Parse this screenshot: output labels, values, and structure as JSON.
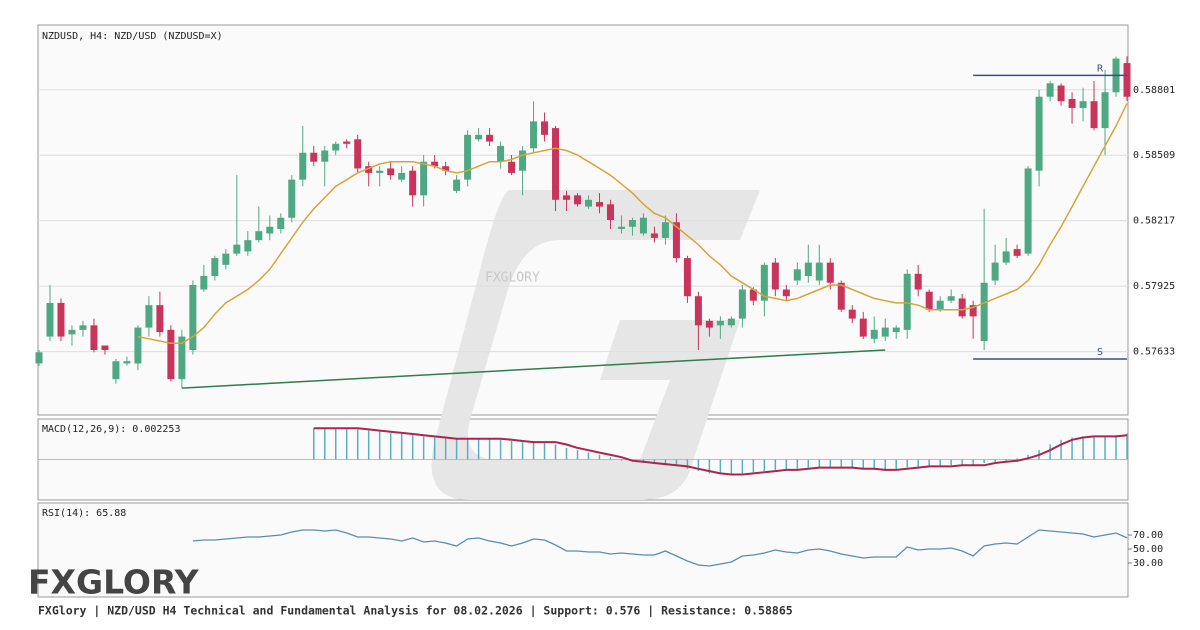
{
  "chart_data": [
    {
      "type": "candlestick",
      "title": "NZDUSD, H4: NZD/USD (NZDUSD=X)",
      "up_color": "#4fa884",
      "down_color": "#c8345c",
      "ylim": [
        0.5735,
        0.5909
      ],
      "yticks": [
        0.57633,
        0.57925,
        0.58217,
        0.58509,
        0.58801
      ],
      "grid": true,
      "open": [
        0.5758,
        0.577,
        0.5785,
        0.5771,
        0.5773,
        0.5775,
        0.5766,
        0.5751,
        0.5758,
        0.5758,
        0.5774,
        0.5784,
        0.5773,
        0.5751,
        0.5764,
        0.5791,
        0.5797,
        0.5802,
        0.5807,
        0.5808,
        0.5813,
        0.5816,
        0.5818,
        0.5823,
        0.584,
        0.5852,
        0.5848,
        0.5853,
        0.5857,
        0.5858,
        0.5846,
        0.5843,
        0.5845,
        0.584,
        0.5844,
        0.5833,
        0.5848,
        0.5846,
        0.5835,
        0.584,
        0.5858,
        0.586,
        0.5848,
        0.5848,
        0.5844,
        0.5854,
        0.5866,
        0.5863,
        0.5833,
        0.5833,
        0.5828,
        0.583,
        0.5829,
        0.5818,
        0.5819,
        0.5816,
        0.5816,
        0.5814,
        0.5821,
        0.5805,
        0.5788,
        0.5777,
        0.5775,
        0.5775,
        0.5778,
        0.5791,
        0.5786,
        0.5803,
        0.5791,
        0.5795,
        0.5797,
        0.5795,
        0.5803,
        0.5794,
        0.5782,
        0.5778,
        0.5769,
        0.577,
        0.5772,
        0.5773,
        0.5798,
        0.579,
        0.5782,
        0.5786,
        0.5787,
        0.5784,
        0.5768,
        0.5795,
        0.5803,
        0.5809,
        0.5807,
        0.5844,
        0.5877,
        0.5882,
        0.5876,
        0.5872,
        0.5875,
        0.5863,
        0.5879,
        0.5892
      ],
      "high": [
        0.5764,
        0.5793,
        0.5787,
        0.5775,
        0.5777,
        0.5778,
        0.5766,
        0.576,
        0.5761,
        0.5775,
        0.5788,
        0.579,
        0.5775,
        0.5773,
        0.5795,
        0.5802,
        0.5806,
        0.5809,
        0.5842,
        0.5817,
        0.5828,
        0.5824,
        0.5825,
        0.5842,
        0.5864,
        0.5855,
        0.5855,
        0.5857,
        0.5858,
        0.586,
        0.5848,
        0.5846,
        0.5848,
        0.5846,
        0.5846,
        0.5851,
        0.5851,
        0.5848,
        0.5842,
        0.5862,
        0.5863,
        0.5863,
        0.5857,
        0.5851,
        0.5855,
        0.5875,
        0.587,
        0.5864,
        0.5835,
        0.5834,
        0.5833,
        0.5834,
        0.5831,
        0.5824,
        0.5823,
        0.5825,
        0.5819,
        0.5824,
        0.5825,
        0.5806,
        0.579,
        0.5778,
        0.5779,
        0.5779,
        0.5793,
        0.5792,
        0.5803,
        0.5805,
        0.5793,
        0.5803,
        0.5811,
        0.5811,
        0.5805,
        0.5795,
        0.5784,
        0.5781,
        0.5779,
        0.5778,
        0.5775,
        0.58,
        0.5802,
        0.5791,
        0.5788,
        0.5791,
        0.5789,
        0.5786,
        0.5827,
        0.5811,
        0.5814,
        0.5811,
        0.5846,
        0.588,
        0.5884,
        0.5883,
        0.5879,
        0.5881,
        0.5884,
        0.5889,
        0.5895,
        0.5895
      ],
      "low": [
        0.5757,
        0.5768,
        0.5768,
        0.5766,
        0.577,
        0.5763,
        0.5762,
        0.5749,
        0.5757,
        0.5755,
        0.577,
        0.577,
        0.575,
        0.5747,
        0.5762,
        0.579,
        0.5795,
        0.58,
        0.5806,
        0.5806,
        0.5812,
        0.5813,
        0.5816,
        0.5821,
        0.5837,
        0.5846,
        0.5837,
        0.5851,
        0.5854,
        0.5843,
        0.5837,
        0.5837,
        0.584,
        0.5839,
        0.5828,
        0.5828,
        0.5845,
        0.5842,
        0.5834,
        0.5837,
        0.5857,
        0.5855,
        0.5845,
        0.5842,
        0.5833,
        0.5852,
        0.5857,
        0.5826,
        0.5826,
        0.5828,
        0.5827,
        0.5825,
        0.5818,
        0.5816,
        0.5815,
        0.5815,
        0.5812,
        0.5811,
        0.5803,
        0.5785,
        0.5764,
        0.577,
        0.5769,
        0.5774,
        0.5774,
        0.5784,
        0.5779,
        0.5788,
        0.5786,
        0.5793,
        0.5794,
        0.5793,
        0.5791,
        0.5781,
        0.5776,
        0.5769,
        0.5767,
        0.5768,
        0.5769,
        0.5769,
        0.5788,
        0.5781,
        0.5781,
        0.5785,
        0.5778,
        0.5769,
        0.5764,
        0.5793,
        0.5802,
        0.5805,
        0.5806,
        0.5837,
        0.5875,
        0.5873,
        0.5865,
        0.5866,
        0.5862,
        0.5851,
        0.5877,
        0.5875
      ],
      "close": [
        0.5763,
        0.5785,
        0.577,
        0.5773,
        0.5775,
        0.5764,
        0.5764,
        0.5759,
        0.5759,
        0.5774,
        0.5784,
        0.5772,
        0.5751,
        0.577,
        0.5793,
        0.5797,
        0.5805,
        0.5807,
        0.5811,
        0.5813,
        0.5817,
        0.5819,
        0.5823,
        0.584,
        0.5852,
        0.5848,
        0.5853,
        0.5856,
        0.5856,
        0.5845,
        0.5843,
        0.5844,
        0.5842,
        0.5843,
        0.5833,
        0.5848,
        0.5846,
        0.5844,
        0.584,
        0.586,
        0.586,
        0.5857,
        0.5855,
        0.5843,
        0.5853,
        0.5866,
        0.586,
        0.5831,
        0.5831,
        0.5829,
        0.5831,
        0.5828,
        0.5822,
        0.5819,
        0.5822,
        0.5823,
        0.5814,
        0.5821,
        0.5805,
        0.5788,
        0.5775,
        0.5774,
        0.5777,
        0.5778,
        0.5791,
        0.5786,
        0.5802,
        0.5791,
        0.5788,
        0.58,
        0.5803,
        0.5803,
        0.5794,
        0.5782,
        0.5778,
        0.577,
        0.5773,
        0.5774,
        0.5774,
        0.5798,
        0.5791,
        0.5782,
        0.5786,
        0.5788,
        0.5779,
        0.5779,
        0.5794,
        0.5803,
        0.5808,
        0.5806,
        0.5845,
        0.5877,
        0.5883,
        0.5875,
        0.5872,
        0.5875,
        0.5863,
        0.5879,
        0.5894,
        0.5877
      ],
      "moving_average": {
        "color": "#d8a43a",
        "values": [
          null,
          null,
          null,
          null,
          null,
          null,
          null,
          null,
          null,
          0.577,
          0.5769,
          0.5768,
          0.5767,
          0.5767,
          0.577,
          0.5774,
          0.578,
          0.5785,
          0.5788,
          0.5791,
          0.5795,
          0.58,
          0.5807,
          0.5814,
          0.5821,
          0.5827,
          0.5832,
          0.5837,
          0.584,
          0.5843,
          0.5845,
          0.5847,
          0.5848,
          0.5848,
          0.5848,
          0.5847,
          0.5846,
          0.5844,
          0.5843,
          0.5844,
          0.5846,
          0.5848,
          0.5848,
          0.5849,
          0.5851,
          0.5852,
          0.5853,
          0.5854,
          0.5853,
          0.5851,
          0.5848,
          0.5845,
          0.5842,
          0.5838,
          0.5834,
          0.5829,
          0.5825,
          0.5823,
          0.5819,
          0.5815,
          0.5811,
          0.5806,
          0.5802,
          0.5797,
          0.5794,
          0.5791,
          0.5788,
          0.5787,
          0.5786,
          0.5787,
          0.5789,
          0.5791,
          0.5793,
          0.5793,
          0.5791,
          0.5789,
          0.5787,
          0.5786,
          0.5785,
          0.5785,
          0.5784,
          0.5782,
          0.5782,
          0.5782,
          0.5782,
          0.5783,
          0.5785,
          0.5787,
          0.5789,
          0.5791,
          0.5795,
          0.5802,
          0.5811,
          0.5819,
          0.5828,
          0.5837,
          0.5846,
          0.5855,
          0.5864,
          0.5874
        ]
      },
      "resistance": {
        "label": "R",
        "value": 0.58865,
        "x": [
          85,
          99
        ],
        "color": "#3e4a8c"
      },
      "support": {
        "label": "S",
        "value": 0.576,
        "x": [
          85,
          99
        ],
        "color": "#3e4a8c"
      },
      "trendline": {
        "x": [
          13,
          77
        ],
        "values": [
          0.5747,
          0.5764
        ],
        "color": "#2f7d50"
      },
      "watermark": "FXGLORY"
    },
    {
      "type": "macd",
      "title": "MACD(12,26,9): 0.002253",
      "ylim": [
        -0.0035,
        0.0035
      ],
      "histogram": {
        "color": "#5aafbf",
        "values": [
          null,
          null,
          null,
          null,
          null,
          null,
          null,
          null,
          null,
          null,
          null,
          null,
          null,
          null,
          null,
          null,
          null,
          null,
          null,
          null,
          null,
          null,
          null,
          null,
          null,
          0.0027,
          0.0027,
          0.0027,
          0.0027,
          0.0026,
          0.0025,
          0.0024,
          0.0023,
          0.0022,
          0.0021,
          0.002,
          0.0019,
          0.0018,
          0.0018,
          0.0018,
          0.0018,
          0.0018,
          0.0017,
          0.0016,
          0.0015,
          0.0015,
          0.0015,
          0.0013,
          0.001,
          0.0008,
          0.0006,
          0.0004,
          0.0002,
          -0.0001,
          -0.0002,
          -0.0003,
          -0.0004,
          -0.0005,
          -0.0006,
          -0.0008,
          -0.001,
          -0.0012,
          -0.0013,
          -0.0013,
          -0.0012,
          -0.0011,
          -0.001,
          -0.0009,
          -0.0009,
          -0.0008,
          -0.0007,
          -0.0007,
          -0.0007,
          -0.0007,
          -0.0008,
          -0.0008,
          -0.0009,
          -0.0009,
          -0.0008,
          -0.0007,
          -0.0006,
          -0.0006,
          -0.0006,
          -0.0005,
          -0.0005,
          -0.0005,
          -0.0003,
          -0.0002,
          -0.0001,
          0.0001,
          0.0004,
          0.0008,
          0.0013,
          0.0017,
          0.0019,
          0.002,
          0.002,
          0.002,
          0.0021,
          0.002253
        ]
      },
      "signal": {
        "color": "#a8264f",
        "values": [
          null,
          null,
          null,
          null,
          null,
          null,
          null,
          null,
          null,
          null,
          null,
          null,
          null,
          null,
          null,
          null,
          null,
          null,
          null,
          null,
          null,
          null,
          null,
          null,
          null,
          0.0027,
          0.0027,
          0.0027,
          0.0027,
          0.0027,
          0.0026,
          0.0025,
          0.0024,
          0.0023,
          0.0022,
          0.0021,
          0.002,
          0.0019,
          0.0018,
          0.0018,
          0.0018,
          0.0018,
          0.0018,
          0.0017,
          0.0016,
          0.0015,
          0.0015,
          0.0015,
          0.0013,
          0.001,
          0.0008,
          0.0006,
          0.0004,
          0.0002,
          -0.0001,
          -0.0002,
          -0.0003,
          -0.0004,
          -0.0005,
          -0.0006,
          -0.0008,
          -0.001,
          -0.0012,
          -0.0013,
          -0.0013,
          -0.0012,
          -0.0011,
          -0.001,
          -0.0009,
          -0.0009,
          -0.0008,
          -0.0007,
          -0.0007,
          -0.0007,
          -0.0007,
          -0.0008,
          -0.0008,
          -0.0009,
          -0.0009,
          -0.0008,
          -0.0007,
          -0.0006,
          -0.0006,
          -0.0006,
          -0.0005,
          -0.0005,
          -0.0005,
          -0.0003,
          -0.0002,
          -0.0001,
          0.0001,
          0.0004,
          0.0008,
          0.0013,
          0.0017,
          0.0019,
          0.002,
          0.002,
          0.002,
          0.0021
        ]
      }
    },
    {
      "type": "line",
      "title": "RSI(14): 65.88",
      "ylim": [
        -18.6,
        115.7
      ],
      "color": "#5b8db2",
      "yticks": [
        {
          "value": 30,
          "label": "30.00"
        },
        {
          "value": 50,
          "label": "50.00"
        },
        {
          "value": 70,
          "label": "70.00"
        }
      ],
      "values": [
        null,
        null,
        null,
        null,
        null,
        null,
        null,
        null,
        null,
        null,
        null,
        null,
        null,
        null,
        61.4,
        62.9,
        62.9,
        64.3,
        65.7,
        67.1,
        67.1,
        68.6,
        70.0,
        74.3,
        77.1,
        77.1,
        75.7,
        77.1,
        72.9,
        67.1,
        67.1,
        65.7,
        64.3,
        61.4,
        65.7,
        60.0,
        61.4,
        58.6,
        54.3,
        64.3,
        65.7,
        61.4,
        58.6,
        54.3,
        58.6,
        64.3,
        62.9,
        55.7,
        47.1,
        47.1,
        45.7,
        45.7,
        42.9,
        44.3,
        42.9,
        41.4,
        41.4,
        47.1,
        40.0,
        32.9,
        27.1,
        25.7,
        28.6,
        31.4,
        40.0,
        41.4,
        44.3,
        48.6,
        45.7,
        44.3,
        48.6,
        50.0,
        47.1,
        42.9,
        40.0,
        37.1,
        38.6,
        38.6,
        38.6,
        52.9,
        48.6,
        50.0,
        50.0,
        51.4,
        47.1,
        40.0,
        54.3,
        57.1,
        58.6,
        57.1,
        67.1,
        77.1,
        75.7,
        74.3,
        72.9,
        71.4,
        67.1,
        70.0,
        72.9,
        65.88
      ]
    }
  ],
  "logo": "FXGLORY",
  "footer": "FXGlory | NZD/USD H4 Technical and Fundamental Analysis for 08.02.2026 | Support: 0.576 | Resistance: 0.58865"
}
